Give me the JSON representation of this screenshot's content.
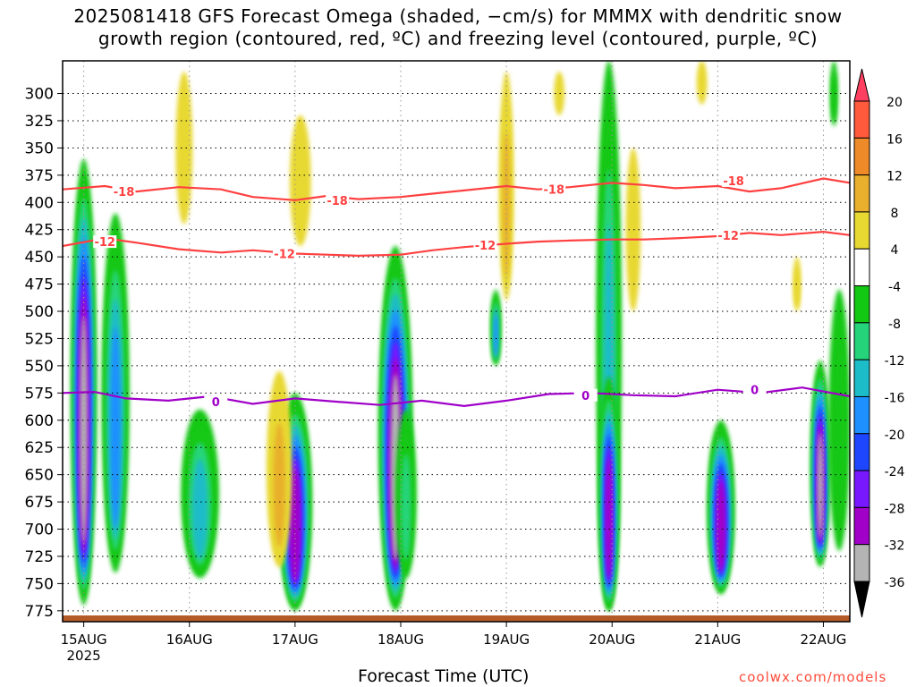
{
  "chart_data": {
    "type": "heatmap",
    "title_line1": "2025081418 GFS Forecast Omega (shaded, −cm/s) for MMMX with dendritic snow",
    "title_line2": "growth region (contoured, red, ºC) and freezing level (contoured, purple, ºC)",
    "xlabel": "Forecast Time (UTC)",
    "credit": "coolwx.com/models",
    "y_ticks": [
      300,
      325,
      350,
      375,
      400,
      425,
      450,
      475,
      500,
      525,
      550,
      575,
      600,
      625,
      650,
      675,
      700,
      725,
      750,
      775
    ],
    "ylim": [
      270,
      785
    ],
    "y_axis": "pressure (hPa), inverted",
    "x_ticks": [
      "15AUG",
      "16AUG",
      "17AUG",
      "18AUG",
      "19AUG",
      "20AUG",
      "21AUG",
      "22AUG"
    ],
    "x_tick_year": "2025",
    "x_range_days": [
      -0.2,
      7.25
    ],
    "colorbar": {
      "levels": [
        20,
        16,
        12,
        8,
        4,
        -4,
        -8,
        -12,
        -16,
        -20,
        -24,
        -28,
        -32,
        -36
      ],
      "colors": [
        "#ff4060",
        "#ff5a3c",
        "#ee8a28",
        "#e8b02c",
        "#e8d832",
        "#ffffff",
        "#12c812",
        "#25d47a",
        "#1cbcc8",
        "#1e90ff",
        "#1e46ff",
        "#7818ff",
        "#a000c8",
        "#b4b4b4",
        "#000000"
      ]
    },
    "contours": [
      {
        "label": "-18",
        "color": "#ff4040",
        "x": [
          -0.2,
          0.2,
          0.5,
          0.9,
          1.3,
          1.6,
          2.0,
          2.3,
          2.6,
          3.0,
          3.3,
          3.6,
          4.0,
          4.3,
          4.6,
          5.0,
          5.3,
          5.6,
          6.0,
          6.3,
          6.6,
          7.0,
          7.25
        ],
        "y": [
          388,
          385,
          390,
          386,
          388,
          395,
          398,
          394,
          397,
          395,
          392,
          389,
          385,
          388,
          386,
          382,
          384,
          387,
          385,
          390,
          387,
          378,
          382
        ]
      },
      {
        "label": "-12",
        "color": "#ff4040",
        "x": [
          -0.2,
          0.2,
          0.5,
          0.9,
          1.3,
          1.6,
          2.0,
          2.3,
          2.6,
          3.0,
          3.3,
          3.6,
          4.0,
          4.3,
          4.6,
          5.0,
          5.3,
          5.6,
          6.0,
          6.3,
          6.6,
          7.0,
          7.25
        ],
        "y": [
          440,
          433,
          437,
          443,
          446,
          444,
          447,
          448,
          449,
          448,
          444,
          441,
          438,
          436,
          435,
          434,
          434,
          433,
          431,
          428,
          430,
          427,
          430
        ]
      },
      {
        "label": "0",
        "color": "#a000c8",
        "x": [
          -0.2,
          0.1,
          0.4,
          0.8,
          1.2,
          1.6,
          2.0,
          2.4,
          2.8,
          3.2,
          3.6,
          4.0,
          4.4,
          4.8,
          5.2,
          5.6,
          6.0,
          6.4,
          6.8,
          7.25
        ],
        "y": [
          575,
          574,
          580,
          582,
          578,
          585,
          580,
          583,
          586,
          582,
          587,
          582,
          576,
          575,
          577,
          578,
          572,
          575,
          570,
          578
        ]
      }
    ],
    "contour_labels": [
      {
        "text": "-18",
        "x": 0.38,
        "y": 390
      },
      {
        "text": "-18",
        "x": 2.4,
        "y": 398
      },
      {
        "text": "-18",
        "x": 4.45,
        "y": 388
      },
      {
        "text": "-18",
        "x": 6.15,
        "y": 380
      },
      {
        "text": "-12",
        "x": 0.2,
        "y": 436
      },
      {
        "text": "-12",
        "x": 1.9,
        "y": 447
      },
      {
        "text": "-12",
        "x": 3.8,
        "y": 439
      },
      {
        "text": "-12",
        "x": 6.1,
        "y": 430
      },
      {
        "text": "0",
        "x": 1.25,
        "y": 583
      },
      {
        "text": "0",
        "x": 4.75,
        "y": 577
      },
      {
        "text": "0",
        "x": 6.35,
        "y": 572
      }
    ],
    "omega_features": [
      {
        "x": 0.0,
        "y_top": 360,
        "y_bot": 770,
        "half_width": 0.12,
        "peak": -36
      },
      {
        "x": 0.3,
        "y_top": 410,
        "y_bot": 740,
        "half_width": 0.13,
        "peak": -20
      },
      {
        "x": 1.1,
        "y_top": 590,
        "y_bot": 745,
        "half_width": 0.18,
        "peak": -16
      },
      {
        "x": 2.0,
        "y_top": 575,
        "y_bot": 775,
        "half_width": 0.16,
        "peak": -32
      },
      {
        "x": 1.85,
        "y_top": 555,
        "y_bot": 735,
        "half_width": 0.12,
        "peak": 12
      },
      {
        "x": 2.95,
        "y_top": 440,
        "y_bot": 775,
        "half_width": 0.16,
        "peak": -36
      },
      {
        "x": 3.05,
        "y_top": 590,
        "y_bot": 745,
        "half_width": 0.1,
        "peak": -12
      },
      {
        "x": 3.9,
        "y_top": 480,
        "y_bot": 550,
        "half_width": 0.05,
        "peak": -20
      },
      {
        "x": 4.0,
        "y_top": 280,
        "y_bot": 490,
        "half_width": 0.07,
        "peak": 12
      },
      {
        "x": 4.97,
        "y_top": 270,
        "y_bot": 775,
        "half_width": 0.12,
        "peak": -16
      },
      {
        "x": 4.97,
        "y_top": 560,
        "y_bot": 775,
        "half_width": 0.1,
        "peak": -32
      },
      {
        "x": 6.03,
        "y_top": 600,
        "y_bot": 760,
        "half_width": 0.13,
        "peak": -32
      },
      {
        "x": 6.97,
        "y_top": 545,
        "y_bot": 735,
        "half_width": 0.09,
        "peak": -36
      },
      {
        "x": 7.15,
        "y_top": 480,
        "y_bot": 720,
        "half_width": 0.1,
        "peak": -8
      },
      {
        "x": 0.95,
        "y_top": 280,
        "y_bot": 420,
        "half_width": 0.08,
        "peak": 4
      },
      {
        "x": 2.05,
        "y_top": 320,
        "y_bot": 440,
        "half_width": 0.1,
        "peak": 4
      },
      {
        "x": 4.5,
        "y_top": 280,
        "y_bot": 320,
        "half_width": 0.05,
        "peak": 4
      },
      {
        "x": 5.2,
        "y_top": 350,
        "y_bot": 500,
        "half_width": 0.07,
        "peak": 4
      },
      {
        "x": 5.85,
        "y_top": 270,
        "y_bot": 310,
        "half_width": 0.05,
        "peak": 4
      },
      {
        "x": 6.75,
        "y_top": 450,
        "y_bot": 500,
        "half_width": 0.04,
        "peak": 8
      },
      {
        "x": 7.1,
        "y_top": 270,
        "y_bot": 330,
        "half_width": 0.04,
        "peak": -8
      }
    ]
  }
}
